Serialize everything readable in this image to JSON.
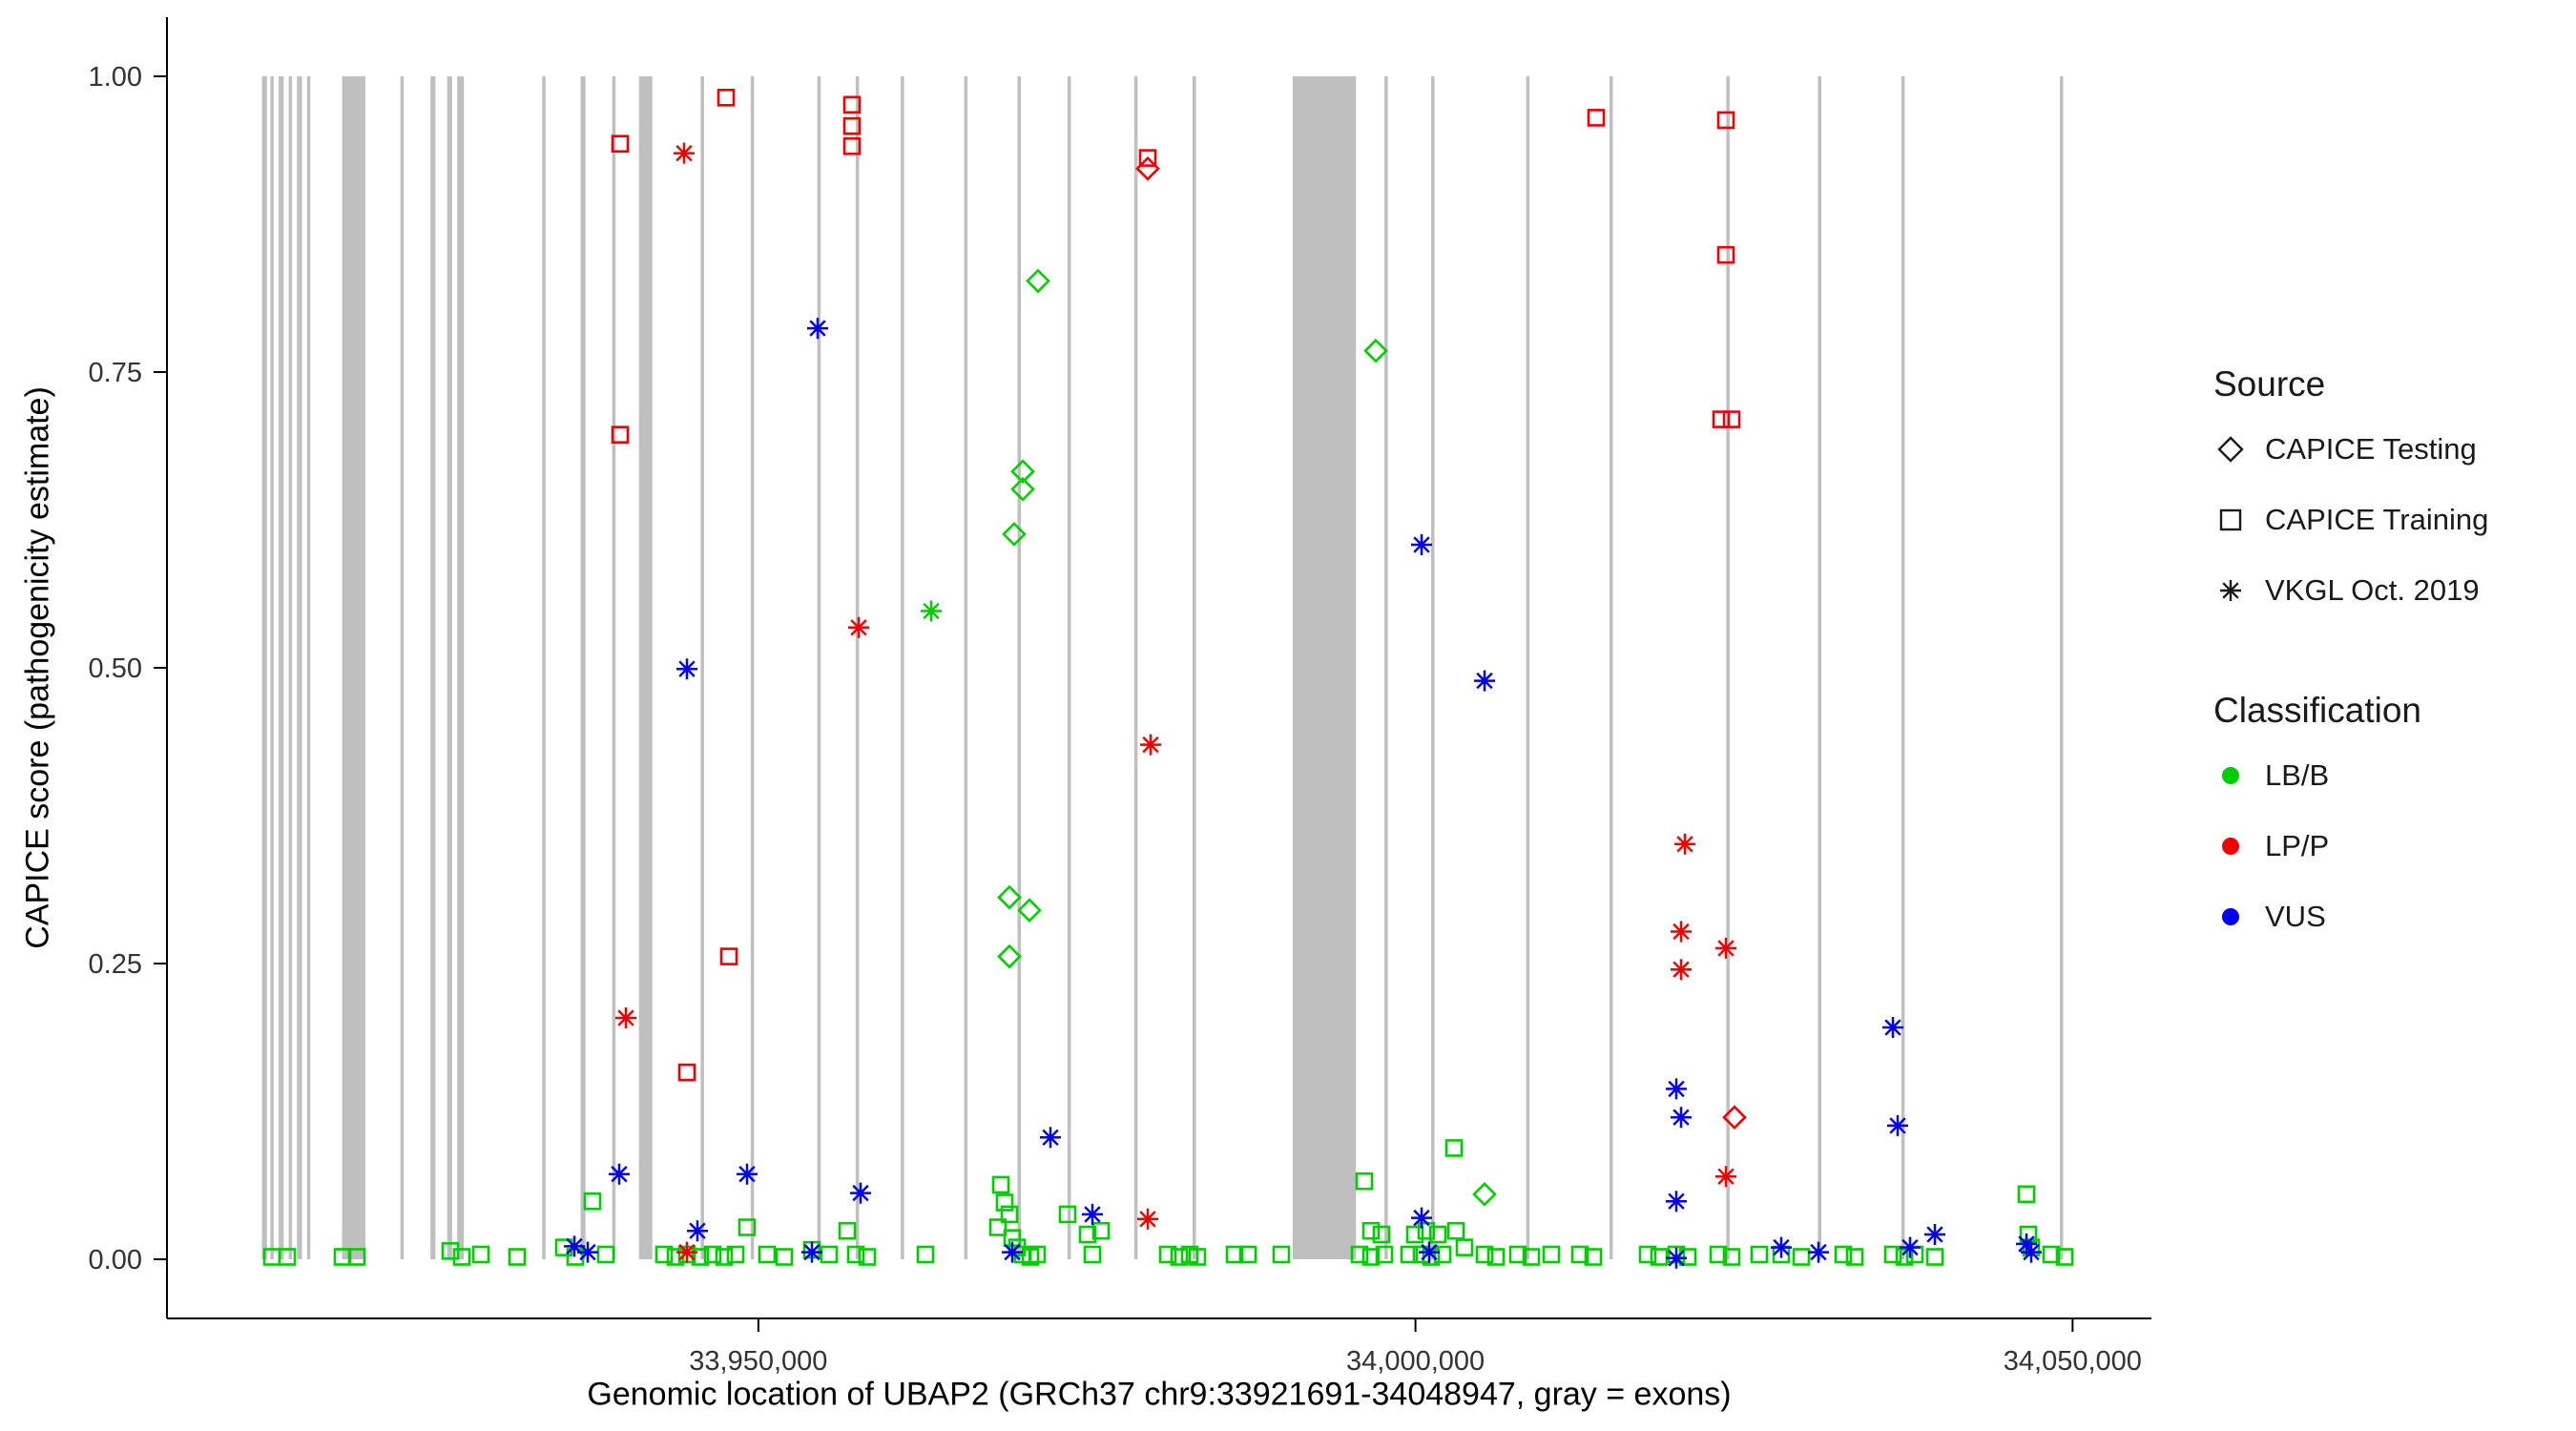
{
  "legend": {
    "source": {
      "title": "Source",
      "items": [
        {
          "label": "CAPICE Testing",
          "symbol": "diamond"
        },
        {
          "label": "CAPICE Training",
          "symbol": "square"
        },
        {
          "label": "VKGL Oct. 2019",
          "symbol": "asterisk"
        }
      ]
    },
    "classification": {
      "title": "Classification",
      "items": [
        {
          "label": "LB/B",
          "color": "#00CC00"
        },
        {
          "label": "LP/P",
          "color": "#EE0000"
        },
        {
          "label": "VUS",
          "color": "#0000EE"
        }
      ]
    }
  },
  "chart_data": {
    "type": "scatter",
    "title": "",
    "xlabel": "Genomic location of UBAP2 (GRCh37 chr9:33921691-34048947, gray = exons)",
    "ylabel": "CAPICE score (pathogenicity estimate)",
    "xlim": [
      33905000,
      34056000
    ],
    "ylim": [
      0,
      1
    ],
    "grid": false,
    "legend_position": "right",
    "exon_color": "#BFBFBF",
    "x_ticks": [
      {
        "value": 33950000,
        "label": "33,950,000"
      },
      {
        "value": 34000000,
        "label": "34,000,000"
      },
      {
        "value": 34050000,
        "label": "34,050,000"
      }
    ],
    "y_ticks": [
      {
        "value": 0,
        "label": "0.00"
      },
      {
        "value": 0.25,
        "label": "0.25"
      },
      {
        "value": 0.5,
        "label": "0.50"
      },
      {
        "value": 0.75,
        "label": "0.75"
      },
      {
        "value": 1,
        "label": "1.00"
      }
    ],
    "exons": [
      [
        33912233,
        33912614
      ],
      [
        33912868,
        33913122
      ],
      [
        33913502,
        33913883
      ],
      [
        33914264,
        33914518
      ],
      [
        33914898,
        33915279
      ],
      [
        33915660,
        33915914
      ],
      [
        33918325,
        33920101
      ],
      [
        33922766,
        33923020
      ],
      [
        33925050,
        33925431
      ],
      [
        33926319,
        33926700
      ],
      [
        33927081,
        33927589
      ],
      [
        33933553,
        33933807
      ],
      [
        33936471,
        33936852
      ],
      [
        33938882,
        33939136
      ],
      [
        33940913,
        33941928
      ],
      [
        33945608,
        33945862
      ],
      [
        33949415,
        33949669
      ],
      [
        33954491,
        33954745
      ],
      [
        33957410,
        33957664
      ],
      [
        33960836,
        33961090
      ],
      [
        33965658,
        33965912
      ],
      [
        33969719,
        33969973
      ],
      [
        33973526,
        33973780
      ],
      [
        33978602,
        33978856
      ],
      [
        33983043,
        33983297
      ],
      [
        33990658,
        33995480
      ],
      [
        33997637,
        33997891
      ],
      [
        34001190,
        34001444
      ],
      [
        34008423,
        34008677
      ],
      [
        34014768,
        34015022
      ],
      [
        34023652,
        34023906
      ],
      [
        34030631,
        34030885
      ],
      [
        34036976,
        34037230
      ],
      [
        34049031,
        34049285
      ]
    ],
    "series": [
      {
        "id": "lbb-capice-testing",
        "name": "LB/B CAPICE Testing",
        "shape": "diamond",
        "color": "#00CC00",
        "points": [
          [
            33971244,
            0.827
          ],
          [
            33996996,
            0.768
          ],
          [
            33970098,
            0.666
          ],
          [
            33970098,
            0.651
          ],
          [
            33969463,
            0.613
          ],
          [
            33969083,
            0.306
          ],
          [
            33970606,
            0.295
          ],
          [
            33969083,
            0.256
          ],
          [
            34005251,
            0.055
          ]
        ]
      },
      {
        "id": "lbb-capice-training",
        "name": "LB/B CAPICE Training",
        "shape": "square",
        "color": "#00CC00",
        "points": [
          [
            33912995,
            0.002
          ],
          [
            33914137,
            0.002
          ],
          [
            33918324,
            0.002
          ],
          [
            33919467,
            0.002
          ],
          [
            33926573,
            0.007
          ],
          [
            33927461,
            0.002
          ],
          [
            33928857,
            0.004
          ],
          [
            33931649,
            0.002
          ],
          [
            33935202,
            0.01
          ],
          [
            33936091,
            0.002
          ],
          [
            33937360,
            0.049
          ],
          [
            33938375,
            0.004
          ],
          [
            33942816,
            0.004
          ],
          [
            33943705,
            0.002
          ],
          [
            33944593,
            0.004
          ],
          [
            33945608,
            0.002
          ],
          [
            33946496,
            0.004
          ],
          [
            33947385,
            0.002
          ],
          [
            33948273,
            0.004
          ],
          [
            33949162,
            0.027
          ],
          [
            33950684,
            0.004
          ],
          [
            33951953,
            0.002
          ],
          [
            33954110,
            0.008
          ],
          [
            33955379,
            0.004
          ],
          [
            33956775,
            0.024
          ],
          [
            33957410,
            0.004
          ],
          [
            33958298,
            0.002
          ],
          [
            33962740,
            0.004
          ],
          [
            33968196,
            0.027
          ],
          [
            33968450,
            0.063
          ],
          [
            33968704,
            0.048
          ],
          [
            33969085,
            0.038
          ],
          [
            33969338,
            0.018
          ],
          [
            33969719,
            0.01
          ],
          [
            33970100,
            0.004
          ],
          [
            33970734,
            0.002
          ],
          [
            33971242,
            0.004
          ],
          [
            33973526,
            0.038
          ],
          [
            33975049,
            0.021
          ],
          [
            33976064,
            0.024
          ],
          [
            33975430,
            0.004
          ],
          [
            33981140,
            0.004
          ],
          [
            33982028,
            0.002
          ],
          [
            33982790,
            0.004
          ],
          [
            33983424,
            0.002
          ],
          [
            33986216,
            0.004
          ],
          [
            33987231,
            0.004
          ],
          [
            33989769,
            0.004
          ],
          [
            33995734,
            0.004
          ],
          [
            33996114,
            0.066
          ],
          [
            33996622,
            0.024
          ],
          [
            33997383,
            0.021
          ],
          [
            33996622,
            0.002
          ],
          [
            33997637,
            0.004
          ],
          [
            33999541,
            0.004
          ],
          [
            33999921,
            0.021
          ],
          [
            34000429,
            0.004
          ],
          [
            34000810,
            0.024
          ],
          [
            34001190,
            0.002
          ],
          [
            34001698,
            0.021
          ],
          [
            34002079,
            0.004
          ],
          [
            34002967,
            0.094
          ],
          [
            34003094,
            0.024
          ],
          [
            34003728,
            0.01
          ],
          [
            34005251,
            0.004
          ],
          [
            34006139,
            0.002
          ],
          [
            34007789,
            0.004
          ],
          [
            34008804,
            0.002
          ],
          [
            34010327,
            0.004
          ],
          [
            34012484,
            0.004
          ],
          [
            34013500,
            0.002
          ],
          [
            34017687,
            0.004
          ],
          [
            34018576,
            0.002
          ],
          [
            34019845,
            0.004
          ],
          [
            34020733,
            0.002
          ],
          [
            34023017,
            0.004
          ],
          [
            34024032,
            0.002
          ],
          [
            34026190,
            0.004
          ],
          [
            34027839,
            0.004
          ],
          [
            34029362,
            0.002
          ],
          [
            34032535,
            0.004
          ],
          [
            34033423,
            0.002
          ],
          [
            34036342,
            0.004
          ],
          [
            34037230,
            0.002
          ],
          [
            34037991,
            0.004
          ],
          [
            34039514,
            0.002
          ],
          [
            34046494,
            0.055
          ],
          [
            34046621,
            0.021
          ],
          [
            34046875,
            0.01
          ],
          [
            34048397,
            0.004
          ],
          [
            34049412,
            0.002
          ]
        ]
      },
      {
        "id": "lbb-vkgl",
        "name": "LB/B VKGL Oct. 2019",
        "shape": "asterisk",
        "color": "#00CC00",
        "points": [
          [
            33963120,
            0.548
          ]
        ]
      },
      {
        "id": "lpp-capice-testing",
        "name": "LP/P CAPICE Testing",
        "shape": "diamond",
        "color": "#EE0000",
        "points": [
          [
            33979617,
            0.922
          ],
          [
            34024286,
            0.12
          ]
        ]
      },
      {
        "id": "lpp-capice-training",
        "name": "LP/P CAPICE Training",
        "shape": "square",
        "color": "#EE0000",
        "points": [
          [
            33939517,
            0.943
          ],
          [
            33947512,
            0.982
          ],
          [
            33957156,
            0.976
          ],
          [
            33957156,
            0.958
          ],
          [
            33957156,
            0.941
          ],
          [
            33979617,
            0.931
          ],
          [
            34013753,
            0.965
          ],
          [
            34023652,
            0.963
          ],
          [
            34023652,
            0.849
          ],
          [
            34023271,
            0.71
          ],
          [
            34024032,
            0.71
          ],
          [
            33939517,
            0.697
          ],
          [
            33947765,
            0.256
          ],
          [
            33944593,
            0.158
          ]
        ]
      },
      {
        "id": "lpp-vkgl",
        "name": "LP/P VKGL Oct. 2019",
        "shape": "asterisk",
        "color": "#EE0000",
        "points": [
          [
            33944339,
            0.935
          ],
          [
            33957664,
            0.534
          ],
          [
            33979871,
            0.435
          ],
          [
            34020479,
            0.351
          ],
          [
            34020225,
            0.277
          ],
          [
            34023652,
            0.263
          ],
          [
            34020225,
            0.245
          ],
          [
            33939898,
            0.204
          ],
          [
            34023652,
            0.07
          ],
          [
            33979617,
            0.034
          ],
          [
            33944593,
            0.006
          ]
        ]
      },
      {
        "id": "vus-vkgl",
        "name": "VUS VKGL Oct. 2019",
        "shape": "asterisk",
        "color": "#0000EE",
        "points": [
          [
            33954491,
            0.787
          ],
          [
            34000429,
            0.604
          ],
          [
            33944593,
            0.499
          ],
          [
            34005251,
            0.489
          ],
          [
            34036342,
            0.196
          ],
          [
            34036722,
            0.113
          ],
          [
            33972257,
            0.103
          ],
          [
            34019845,
            0.144
          ],
          [
            34020225,
            0.12
          ],
          [
            34019845,
            0.049
          ],
          [
            33949162,
            0.072
          ],
          [
            33939390,
            0.072
          ],
          [
            33945354,
            0.024
          ],
          [
            33957790,
            0.056
          ],
          [
            33975430,
            0.038
          ],
          [
            34000429,
            0.035
          ],
          [
            34039514,
            0.021
          ],
          [
            33935964,
            0.011
          ],
          [
            33936979,
            0.006
          ],
          [
            33954110,
            0.006
          ],
          [
            33969338,
            0.006
          ],
          [
            34001063,
            0.006
          ],
          [
            34019845,
            0.001
          ],
          [
            34027839,
            0.01
          ],
          [
            34030631,
            0.006
          ],
          [
            34037611,
            0.01
          ],
          [
            34046494,
            0.013
          ],
          [
            34046875,
            0.006
          ]
        ]
      }
    ]
  }
}
